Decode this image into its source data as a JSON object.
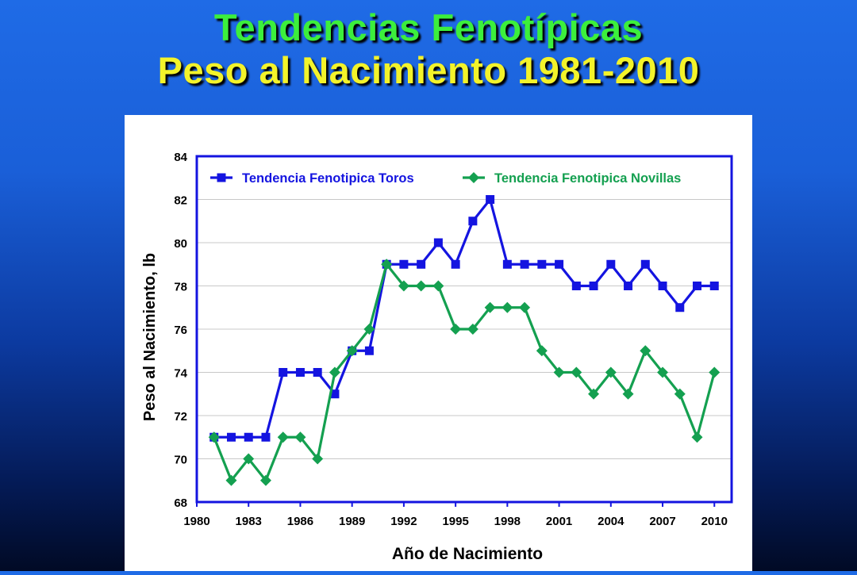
{
  "slide": {
    "title_line1": "Tendencias Fenotípicas",
    "title_line2": "Peso al Nacimiento 1981-2010"
  },
  "colors": {
    "toros": "#1414e0",
    "novillas": "#14a050",
    "title_green": "#3cef3c",
    "title_yellow": "#f3f32a"
  },
  "chart_data": {
    "type": "line",
    "xlabel": "Año de Nacimiento",
    "ylabel": "Peso al Nacimiento, lb",
    "xlim": [
      1980,
      2011
    ],
    "ylim": [
      68,
      84
    ],
    "x_ticks": [
      1980,
      1983,
      1986,
      1989,
      1992,
      1995,
      1998,
      2001,
      2004,
      2007,
      2010
    ],
    "y_ticks": [
      68,
      70,
      72,
      74,
      76,
      78,
      80,
      82,
      84
    ],
    "grid": true,
    "legend_position": "top",
    "x": [
      1981,
      1982,
      1983,
      1984,
      1985,
      1986,
      1987,
      1988,
      1989,
      1990,
      1991,
      1992,
      1993,
      1994,
      1995,
      1996,
      1997,
      1998,
      1999,
      2000,
      2001,
      2002,
      2003,
      2004,
      2005,
      2006,
      2007,
      2008,
      2009,
      2010
    ],
    "series": [
      {
        "name": "Tendencia Fenotipica Toros",
        "marker": "square",
        "values": [
          71,
          71,
          71,
          71,
          74,
          74,
          74,
          73,
          75,
          75,
          79,
          79,
          79,
          80,
          79,
          81,
          82,
          79,
          79,
          79,
          79,
          78,
          78,
          79,
          78,
          79,
          78,
          77,
          78,
          78
        ]
      },
      {
        "name": "Tendencia Fenotipica Novillas",
        "marker": "diamond",
        "values": [
          71,
          69,
          70,
          69,
          71,
          71,
          70,
          74,
          75,
          76,
          79,
          78,
          78,
          78,
          76,
          76,
          77,
          77,
          77,
          75,
          74,
          74,
          73,
          74,
          73,
          75,
          74,
          73,
          71,
          74
        ]
      }
    ]
  }
}
